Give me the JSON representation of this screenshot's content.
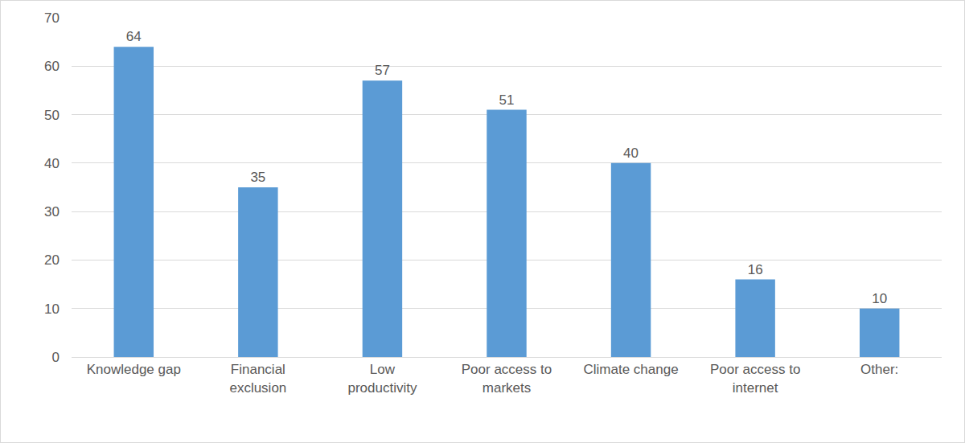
{
  "chart_data": {
    "type": "bar",
    "categories": [
      "Knowledge gap",
      "Financial exclusion",
      "Low productivity",
      "Poor access to markets",
      "Climate change",
      "Poor access to internet",
      "Other:"
    ],
    "values": [
      64,
      35,
      57,
      51,
      40,
      16,
      10
    ],
    "color": "#5b9bd5",
    "ylim": [
      0,
      70
    ],
    "yticks": [
      0,
      10,
      20,
      30,
      40,
      50,
      60,
      70
    ],
    "grid": true,
    "data_labels": true
  }
}
